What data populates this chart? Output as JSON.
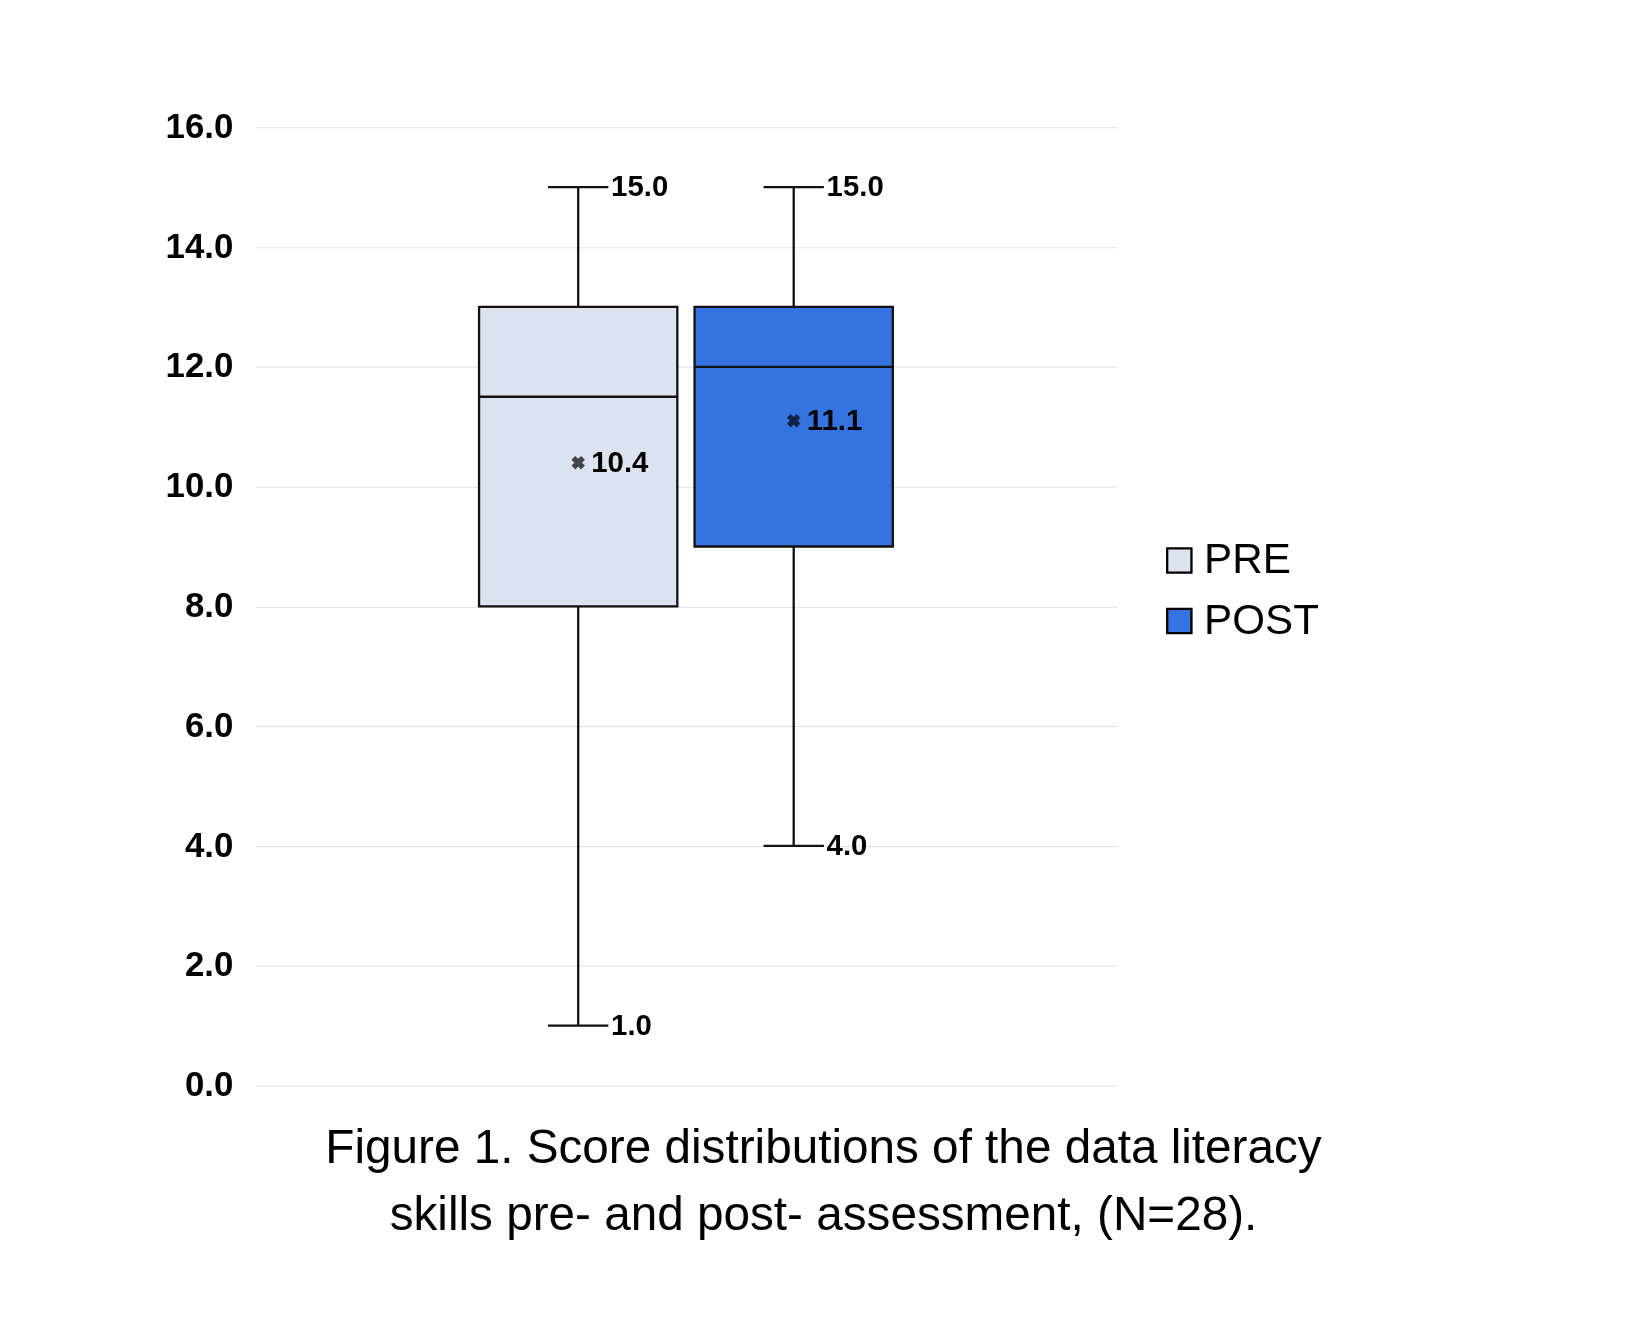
{
  "chart_data": {
    "type": "box",
    "categories": [
      null
    ],
    "series": [
      {
        "name": "PRE",
        "color": "#dce3f0",
        "boxes": [
          {
            "low": 1.0,
            "q1": 8.0,
            "median": 11.5,
            "q3": 13.0,
            "high": 15.0,
            "mean": 10.4
          }
        ]
      },
      {
        "name": "POST",
        "color": "#3574e0",
        "boxes": [
          {
            "low": 4.0,
            "q1": 9.0,
            "median": 12.0,
            "q3": 13.0,
            "high": 15.0,
            "mean": 11.1
          }
        ]
      }
    ],
    "ylim": [
      0,
      16
    ],
    "yticks": [
      {
        "value": 0,
        "label": "0.0"
      },
      {
        "value": 2,
        "label": "2.0"
      },
      {
        "value": 4,
        "label": "4.0"
      },
      {
        "value": 6,
        "label": "6.0"
      },
      {
        "value": 8,
        "label": "8.0"
      },
      {
        "value": 10,
        "label": "10.0"
      },
      {
        "value": 12,
        "label": "12.0"
      },
      {
        "value": 14,
        "label": "14.0"
      },
      {
        "value": 16,
        "label": "16.0"
      }
    ],
    "grid": "y",
    "legend": "right",
    "marker": "cross",
    "annotations": [
      "Figure 1. Score distributions of the data literacy skills pre- and post- assessment, (N=28).",
      "1.0",
      "15.0",
      "10.4",
      "4.0",
      "15.0",
      "11.1"
    ]
  }
}
